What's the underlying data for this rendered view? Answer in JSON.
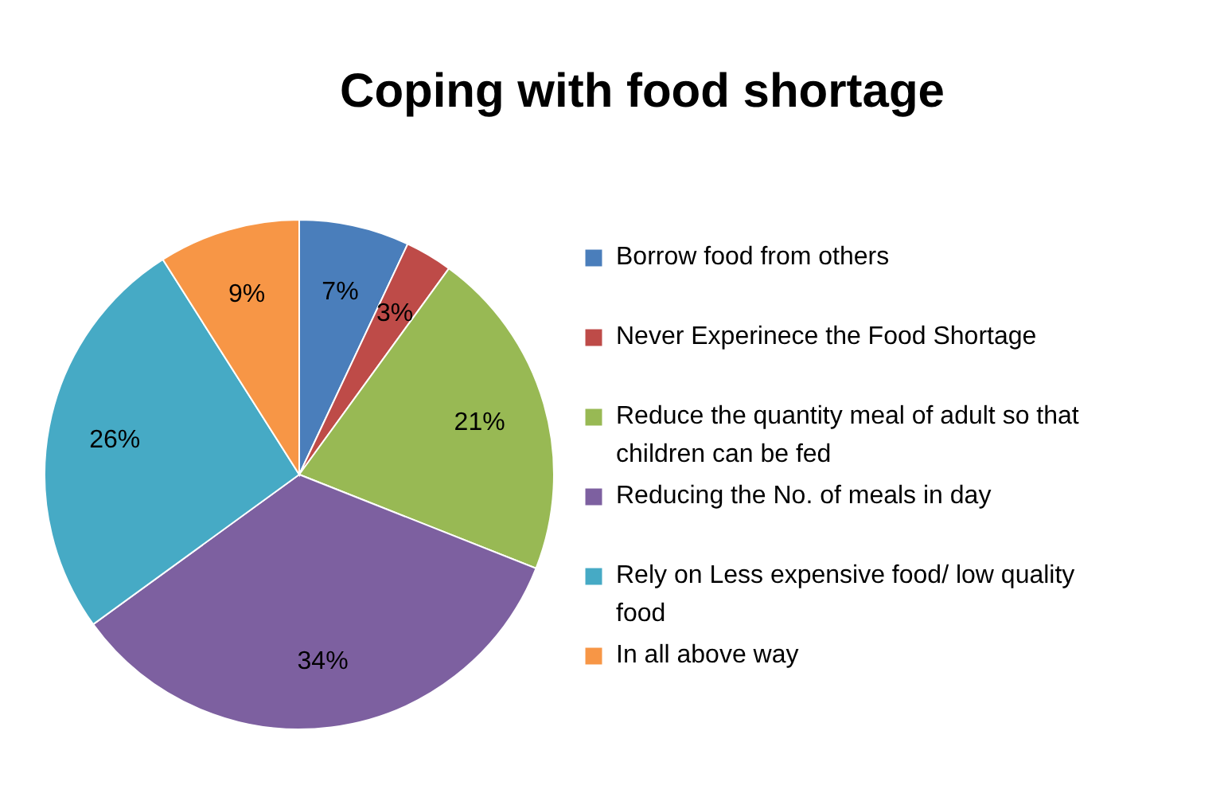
{
  "chart_data": {
    "type": "pie",
    "title": "Coping with food shortage",
    "categories": [
      "Borrow food from others",
      "Never Experinece the Food Shortage",
      "Reduce the quantity meal of  adult so that children can be fed",
      "Reducing the No. of meals in day",
      "Rely on Less expensive food/ low quality food",
      "In all above way"
    ],
    "values": [
      7,
      3,
      21,
      34,
      26,
      9
    ],
    "colors": [
      "#4a7ebb",
      "#be4b48",
      "#98b954",
      "#7d60a0",
      "#46aac5",
      "#f79646"
    ],
    "value_labels": [
      "7%",
      "3%",
      "21%",
      "34%",
      "26%",
      "9%"
    ],
    "legend": "right"
  }
}
